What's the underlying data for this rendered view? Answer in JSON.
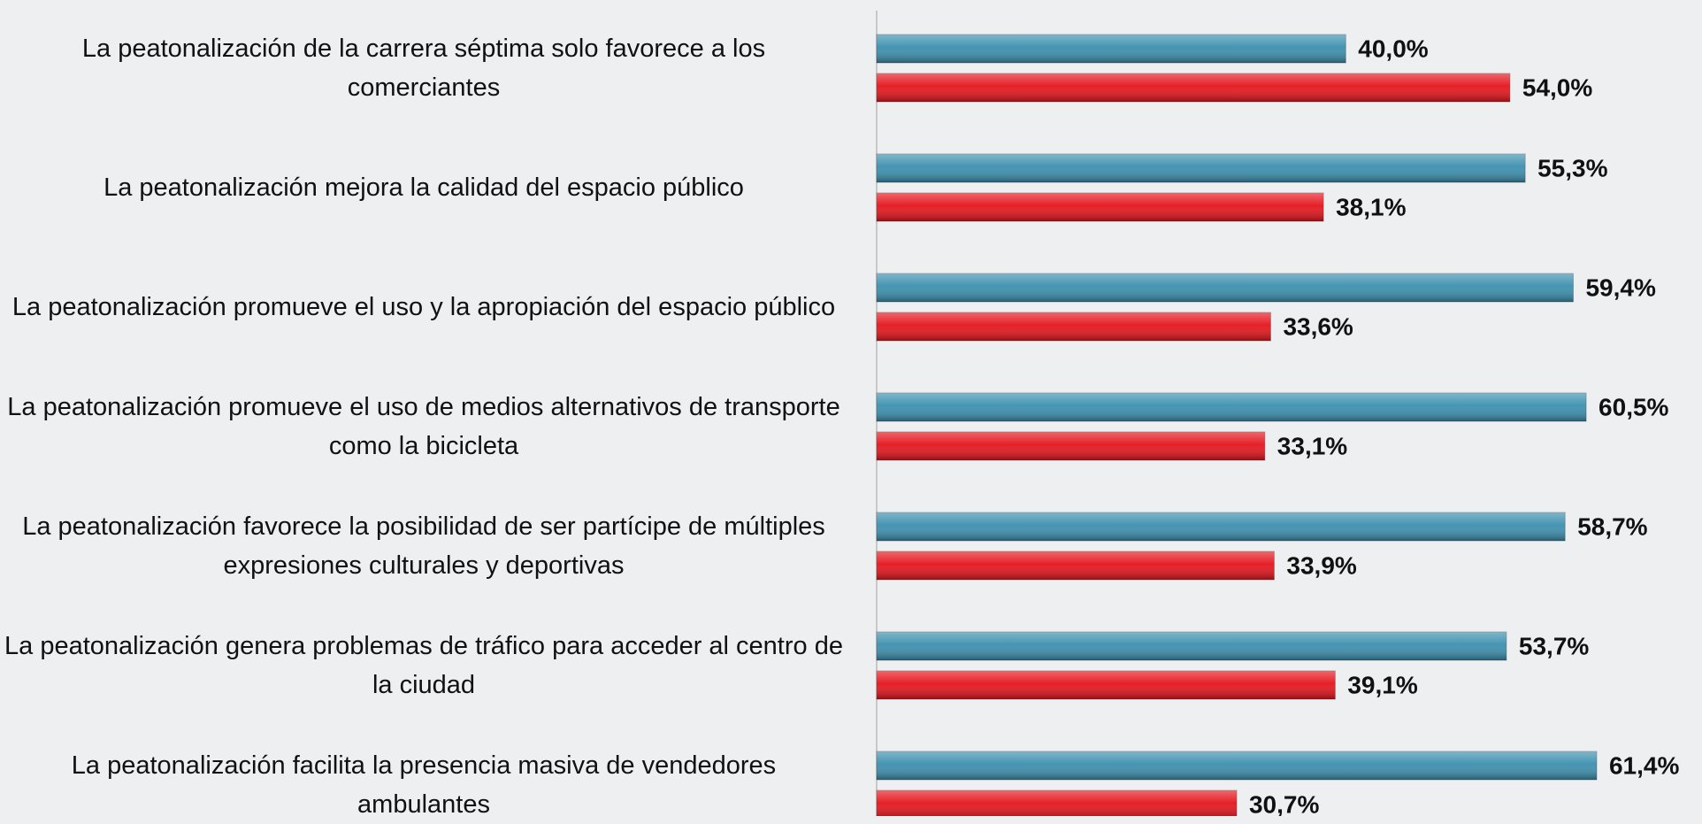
{
  "chart_data": {
    "type": "hbar",
    "categories": [
      "La peatonalización de la carrera séptima solo favorece a los comerciantes",
      "La peatonalización mejora la calidad del espacio público",
      "La peatonalización promueve el uso y la apropiación del espacio público",
      "La peatonalización promueve el uso de medios alternativos de transporte como la bicicleta",
      "La peatonalización favorece la posibilidad de ser partícipe de múltiples expresiones culturales y deportivas",
      "La peatonalización genera problemas de tráfico para acceder al centro de la ciudad",
      "La peatonalización facilita la presencia masiva de vendedores ambulantes"
    ],
    "series": [
      {
        "color": "#3b8fae",
        "values": [
          40.0,
          55.3,
          59.4,
          60.5,
          58.7,
          53.7,
          61.4
        ],
        "value_labels": [
          "40,0%",
          "55,3%",
          "59,4%",
          "60,5%",
          "58,7%",
          "53,7%",
          "61,4%"
        ]
      },
      {
        "color": "#e5141c",
        "values": [
          54.0,
          38.1,
          33.6,
          33.1,
          33.9,
          39.1,
          30.7
        ],
        "value_labels": [
          "54,0%",
          "38,1%",
          "33,6%",
          "33,1%",
          "33,9%",
          "39,1%",
          "30,7%"
        ]
      }
    ],
    "xlim": [
      0,
      70
    ]
  }
}
